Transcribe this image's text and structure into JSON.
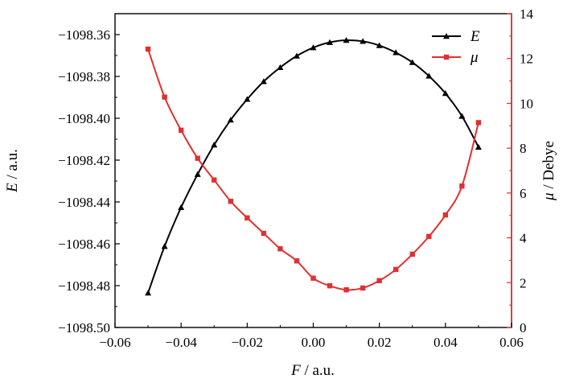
{
  "chart_data": {
    "type": "line",
    "xlabel": {
      "symbol": "F",
      "unit": " / a.u."
    },
    "ylabel_left": {
      "symbol": "E",
      "unit": " / a.u."
    },
    "ylabel_right": {
      "symbol": "μ",
      "unit": " / Debye"
    },
    "xlim": [
      -0.06,
      0.06
    ],
    "ylim_left": [
      -1098.5,
      -1098.35
    ],
    "ylim_right": [
      0,
      14
    ],
    "x_ticks": [
      "−0.06",
      "−0.04",
      "−0.02",
      "0.00",
      "0.02",
      "0.04",
      "0.06"
    ],
    "y_left_ticks": [
      "−1098.36",
      "−1098.38",
      "−1098.40",
      "−1098.42",
      "−1098.44",
      "−1098.46",
      "−1098.48",
      "−1098.50"
    ],
    "y_right_ticks": [
      "0",
      "2",
      "4",
      "6",
      "8",
      "10",
      "12",
      "14"
    ],
    "grid": false,
    "legend_position": "top-right",
    "series": [
      {
        "name": "E",
        "axis": "left",
        "color": "#000000",
        "marker": "triangle",
        "x": [
          -0.05,
          -0.045,
          -0.04,
          -0.035,
          -0.03,
          -0.025,
          -0.02,
          -0.015,
          -0.01,
          -0.005,
          0.0,
          0.005,
          0.01,
          0.015,
          0.02,
          0.025,
          0.03,
          0.035,
          0.04,
          0.045,
          0.05
        ],
        "y": [
          -1098.4835,
          -1098.4612,
          -1098.4426,
          -1098.4268,
          -1098.4127,
          -1098.4008,
          -1098.3909,
          -1098.3824,
          -1098.3757,
          -1098.3702,
          -1098.3662,
          -1098.3637,
          -1098.3627,
          -1098.3632,
          -1098.3652,
          -1098.3686,
          -1098.3733,
          -1098.3798,
          -1098.3881,
          -1098.399,
          -1098.4138
        ]
      },
      {
        "name": "μ",
        "axis": "right",
        "color": "#e03030",
        "marker": "square",
        "x": [
          -0.05,
          -0.045,
          -0.04,
          -0.035,
          -0.03,
          -0.025,
          -0.02,
          -0.015,
          -0.01,
          -0.005,
          0.0,
          0.005,
          0.01,
          0.015,
          0.02,
          0.025,
          0.03,
          0.035,
          0.04,
          0.045,
          0.05
        ],
        "y": [
          12.42,
          10.28,
          8.8,
          7.55,
          6.58,
          5.63,
          4.89,
          4.2,
          3.51,
          2.97,
          2.2,
          1.86,
          1.68,
          1.76,
          2.09,
          2.59,
          3.27,
          4.06,
          5.02,
          6.31,
          9.14
        ]
      }
    ]
  }
}
